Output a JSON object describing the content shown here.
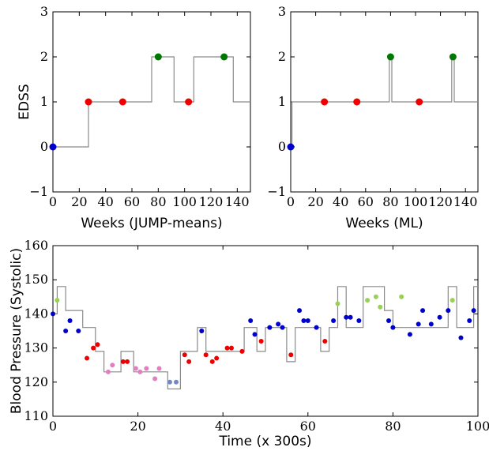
{
  "chart_data": [
    {
      "type": "line",
      "ylabel": "EDSS",
      "xlabel": "Weeks (JUMP-means)",
      "xlim": [
        0,
        150
      ],
      "ylim": [
        -1,
        3
      ],
      "xticks": [
        0,
        20,
        40,
        60,
        80,
        100,
        120,
        140
      ],
      "yticks": [
        -1,
        0,
        1,
        2,
        3
      ],
      "ytick_labels": [
        "−1",
        "0",
        "1",
        "2",
        "3"
      ],
      "step_color": "#8a8a8a",
      "step": {
        "x": [
          0,
          0,
          27,
          27,
          75,
          75,
          92,
          92,
          107,
          107,
          123,
          123,
          137,
          137,
          150
        ],
        "y": [
          0,
          0,
          0,
          1,
          1,
          2,
          2,
          1,
          1,
          2,
          2,
          2,
          2,
          1,
          1
        ]
      },
      "points": [
        {
          "x": 0,
          "y": 0,
          "color": "#0000cc"
        },
        {
          "x": 27,
          "y": 1,
          "color": "#ee0000"
        },
        {
          "x": 53,
          "y": 1,
          "color": "#ee0000"
        },
        {
          "x": 80,
          "y": 2,
          "color": "#007700"
        },
        {
          "x": 103,
          "y": 1,
          "color": "#ee0000"
        },
        {
          "x": 130,
          "y": 2,
          "color": "#007700"
        }
      ]
    },
    {
      "type": "line",
      "ylabel": "",
      "xlabel": "Weeks (ML)",
      "xlim": [
        0,
        150
      ],
      "ylim": [
        -1,
        3
      ],
      "xticks": [
        0,
        20,
        40,
        60,
        80,
        100,
        120,
        140
      ],
      "yticks": [
        -1,
        0,
        1,
        2,
        3
      ],
      "ytick_labels": [
        "−1",
        "0",
        "1",
        "2",
        "3"
      ],
      "step_color": "#8a8a8a",
      "step": {
        "x": [
          0,
          0,
          1,
          1,
          79,
          79,
          81,
          81,
          129,
          129,
          131,
          131,
          150
        ],
        "y": [
          0,
          0,
          0,
          1,
          1,
          2,
          2,
          1,
          1,
          2,
          2,
          1,
          1
        ]
      },
      "points": [
        {
          "x": 0,
          "y": 0,
          "color": "#0000cc"
        },
        {
          "x": 27,
          "y": 1,
          "color": "#ee0000"
        },
        {
          "x": 53,
          "y": 1,
          "color": "#ee0000"
        },
        {
          "x": 80,
          "y": 2,
          "color": "#007700"
        },
        {
          "x": 103,
          "y": 1,
          "color": "#ee0000"
        },
        {
          "x": 130,
          "y": 2,
          "color": "#007700"
        }
      ]
    },
    {
      "type": "scatter",
      "ylabel": "Blood Pressure (Systolic)",
      "xlabel": "Time (x 300s)",
      "xlim": [
        0,
        100
      ],
      "ylim": [
        110,
        160
      ],
      "xticks": [
        0,
        20,
        40,
        60,
        80,
        100
      ],
      "yticks": [
        110,
        120,
        130,
        140,
        150,
        160
      ],
      "ytick_labels": [
        "110",
        "120",
        "130",
        "140",
        "150",
        "160"
      ],
      "step_color": "#8a8a8a",
      "step": {
        "x": [
          0,
          1,
          1,
          3,
          3,
          7,
          7,
          10,
          10,
          12,
          12,
          16,
          16,
          19,
          19,
          27,
          27,
          30,
          30,
          34,
          34,
          36,
          36,
          45,
          45,
          48,
          48,
          50,
          50,
          55,
          55,
          57,
          57,
          63,
          63,
          65,
          65,
          67,
          67,
          69,
          69,
          73,
          73,
          78,
          78,
          80,
          80,
          93,
          93,
          95,
          95,
          99,
          99,
          100
        ],
        "y": [
          140,
          140,
          148,
          148,
          141,
          141,
          136,
          136,
          129,
          129,
          123,
          123,
          129,
          129,
          123,
          123,
          118,
          118,
          129,
          129,
          136,
          136,
          129,
          129,
          136,
          136,
          129,
          129,
          136,
          136,
          126,
          126,
          136,
          136,
          129,
          129,
          136,
          136,
          148,
          148,
          136,
          136,
          148,
          148,
          141,
          141,
          136,
          136,
          148,
          148,
          136,
          136,
          148,
          148
        ]
      },
      "points": [
        {
          "x": 0,
          "y": 140,
          "color": "#0000cc"
        },
        {
          "x": 1,
          "y": 144,
          "color": "#99d155"
        },
        {
          "x": 3,
          "y": 135,
          "color": "#0000cc"
        },
        {
          "x": 4,
          "y": 138,
          "color": "#0000cc"
        },
        {
          "x": 6,
          "y": 135,
          "color": "#0000cc"
        },
        {
          "x": 8,
          "y": 127,
          "color": "#ee0000"
        },
        {
          "x": 9.5,
          "y": 130,
          "color": "#ee0000"
        },
        {
          "x": 10.5,
          "y": 131,
          "color": "#ee0000"
        },
        {
          "x": 13,
          "y": 123,
          "color": "#e080c0"
        },
        {
          "x": 14,
          "y": 125,
          "color": "#e080c0"
        },
        {
          "x": 16.5,
          "y": 126,
          "color": "#ee0000"
        },
        {
          "x": 17.5,
          "y": 126,
          "color": "#ee0000"
        },
        {
          "x": 19.5,
          "y": 124,
          "color": "#e080c0"
        },
        {
          "x": 20.5,
          "y": 123,
          "color": "#e080c0"
        },
        {
          "x": 22,
          "y": 124,
          "color": "#e080c0"
        },
        {
          "x": 24,
          "y": 121,
          "color": "#e080c0"
        },
        {
          "x": 25,
          "y": 124,
          "color": "#e080c0"
        },
        {
          "x": 27.5,
          "y": 120,
          "color": "#7088c8"
        },
        {
          "x": 29,
          "y": 120,
          "color": "#7088c8"
        },
        {
          "x": 31,
          "y": 128,
          "color": "#ee0000"
        },
        {
          "x": 32,
          "y": 126,
          "color": "#ee0000"
        },
        {
          "x": 35,
          "y": 135,
          "color": "#0000cc"
        },
        {
          "x": 36,
          "y": 128,
          "color": "#ee0000"
        },
        {
          "x": 37.5,
          "y": 126,
          "color": "#ee0000"
        },
        {
          "x": 38.5,
          "y": 127,
          "color": "#ee0000"
        },
        {
          "x": 41,
          "y": 130,
          "color": "#ee0000"
        },
        {
          "x": 42,
          "y": 130,
          "color": "#ee0000"
        },
        {
          "x": 44.5,
          "y": 129,
          "color": "#ee0000"
        },
        {
          "x": 46.5,
          "y": 138,
          "color": "#0000cc"
        },
        {
          "x": 47.5,
          "y": 134,
          "color": "#0000cc"
        },
        {
          "x": 49,
          "y": 132,
          "color": "#ee0000"
        },
        {
          "x": 51,
          "y": 136,
          "color": "#0000cc"
        },
        {
          "x": 53,
          "y": 137,
          "color": "#0000cc"
        },
        {
          "x": 54,
          "y": 136,
          "color": "#0000cc"
        },
        {
          "x": 56,
          "y": 128,
          "color": "#ee0000"
        },
        {
          "x": 58,
          "y": 141,
          "color": "#0000cc"
        },
        {
          "x": 59,
          "y": 138,
          "color": "#0000cc"
        },
        {
          "x": 60,
          "y": 138,
          "color": "#0000cc"
        },
        {
          "x": 62,
          "y": 136,
          "color": "#0000cc"
        },
        {
          "x": 64,
          "y": 132,
          "color": "#ee0000"
        },
        {
          "x": 66,
          "y": 138,
          "color": "#0000cc"
        },
        {
          "x": 67,
          "y": 143,
          "color": "#99d155"
        },
        {
          "x": 69,
          "y": 139,
          "color": "#0000cc"
        },
        {
          "x": 70,
          "y": 139,
          "color": "#0000cc"
        },
        {
          "x": 72,
          "y": 138,
          "color": "#0000cc"
        },
        {
          "x": 74,
          "y": 144,
          "color": "#99d155"
        },
        {
          "x": 76,
          "y": 145,
          "color": "#99d155"
        },
        {
          "x": 77,
          "y": 142,
          "color": "#99d155"
        },
        {
          "x": 79,
          "y": 138,
          "color": "#0000cc"
        },
        {
          "x": 80,
          "y": 136,
          "color": "#0000cc"
        },
        {
          "x": 82,
          "y": 145,
          "color": "#99d155"
        },
        {
          "x": 84,
          "y": 134,
          "color": "#0000cc"
        },
        {
          "x": 86,
          "y": 137,
          "color": "#0000cc"
        },
        {
          "x": 87,
          "y": 141,
          "color": "#0000cc"
        },
        {
          "x": 89,
          "y": 137,
          "color": "#0000cc"
        },
        {
          "x": 91,
          "y": 139,
          "color": "#0000cc"
        },
        {
          "x": 93,
          "y": 141,
          "color": "#0000cc"
        },
        {
          "x": 94,
          "y": 144,
          "color": "#99d155"
        },
        {
          "x": 96,
          "y": 133,
          "color": "#0000cc"
        },
        {
          "x": 98,
          "y": 138,
          "color": "#0000cc"
        },
        {
          "x": 99,
          "y": 141,
          "color": "#0000cc"
        }
      ]
    }
  ]
}
